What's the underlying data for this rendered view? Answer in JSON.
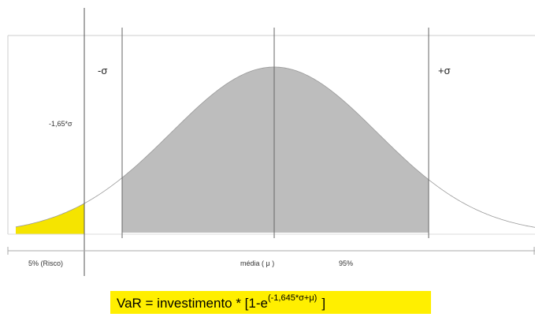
{
  "labels": {
    "minus_sigma": "-σ",
    "plus_sigma": "+σ",
    "var_cut": "-1,65*σ",
    "risk": "5% (Risco)",
    "mean": "média ( μ )",
    "confidence": "95%"
  },
  "formula": {
    "main": "VaR = investimento * [1-e",
    "exponent": "(-1,645*σ+μ)",
    "close": "]"
  }
}
